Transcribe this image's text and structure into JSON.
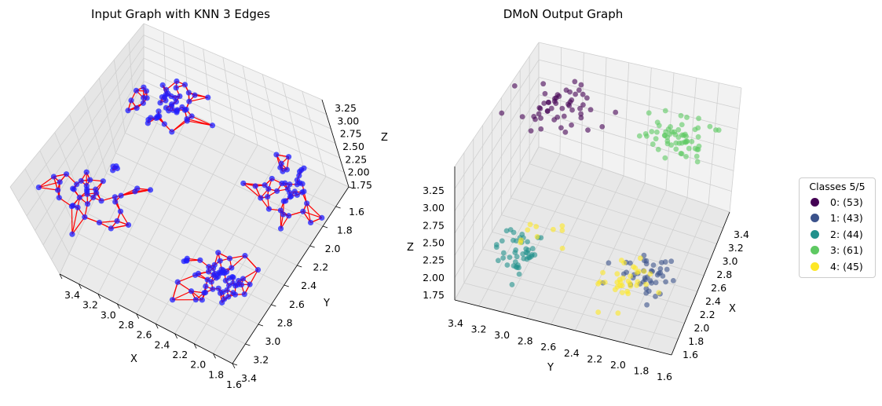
{
  "chart_data": [
    {
      "type": "scatter",
      "subtype": "3d-graph",
      "title": "Input Graph with KNN 3 Edges",
      "xlabel": "X",
      "ylabel": "Y",
      "zlabel": "Z",
      "xticks": [
        "3.4",
        "3.2",
        "3.0",
        "2.8",
        "2.6",
        "2.4",
        "2.2",
        "2.0",
        "1.8",
        "1.6"
      ],
      "yticks": [
        "1.6",
        "1.8",
        "2.0",
        "2.2",
        "2.4",
        "2.6",
        "2.8",
        "3.0",
        "3.2",
        "3.4"
      ],
      "zticks": [
        "3.25",
        "3.00",
        "2.75",
        "2.50",
        "2.25",
        "2.00",
        "1.75"
      ],
      "xlim": [
        1.6,
        3.4
      ],
      "ylim": [
        1.6,
        3.4
      ],
      "zlim": [
        1.75,
        3.25
      ],
      "node_color": "#1f1fff",
      "edge_color": "#ff0000",
      "clusters": [
        {
          "x": 2.9,
          "y": 2.0,
          "z": 3.0,
          "n": 53
        },
        {
          "x": 3.1,
          "y": 2.9,
          "z": 2.1,
          "n": 43
        },
        {
          "x": 2.0,
          "y": 2.0,
          "z": 2.1,
          "n": 44
        },
        {
          "x": 2.0,
          "y": 3.1,
          "z": 3.0,
          "n": 61
        }
      ]
    },
    {
      "type": "scatter",
      "subtype": "3d",
      "title": "DMoN Output Graph",
      "xlabel": "X",
      "ylabel": "Y",
      "zlabel": "Z",
      "xticks": [
        "3.4",
        "3.2",
        "3.0",
        "2.8",
        "2.6",
        "2.4",
        "2.2",
        "2.0",
        "1.8",
        "1.6"
      ],
      "yticks": [
        "3.4",
        "3.2",
        "3.0",
        "2.8",
        "2.6",
        "2.4",
        "2.2",
        "2.0",
        "1.8",
        "1.6"
      ],
      "zticks": [
        "3.25",
        "3.00",
        "2.75",
        "2.50",
        "2.25",
        "2.00",
        "1.75"
      ],
      "xlim": [
        1.6,
        3.4
      ],
      "ylim": [
        1.6,
        3.4
      ],
      "zlim": [
        1.75,
        3.25
      ],
      "series": [
        {
          "name": "0: (53)",
          "color": "#440154",
          "count": 53
        },
        {
          "name": "1: (43)",
          "color": "#3b528b",
          "count": 43
        },
        {
          "name": "2: (44)",
          "color": "#21918c",
          "count": 44
        },
        {
          "name": "3: (61)",
          "color": "#5ec962",
          "count": 61
        },
        {
          "name": "4: (45)",
          "color": "#fde725",
          "count": 45
        }
      ],
      "legend": {
        "title": "Classes 5/5",
        "position": "right"
      }
    }
  ]
}
